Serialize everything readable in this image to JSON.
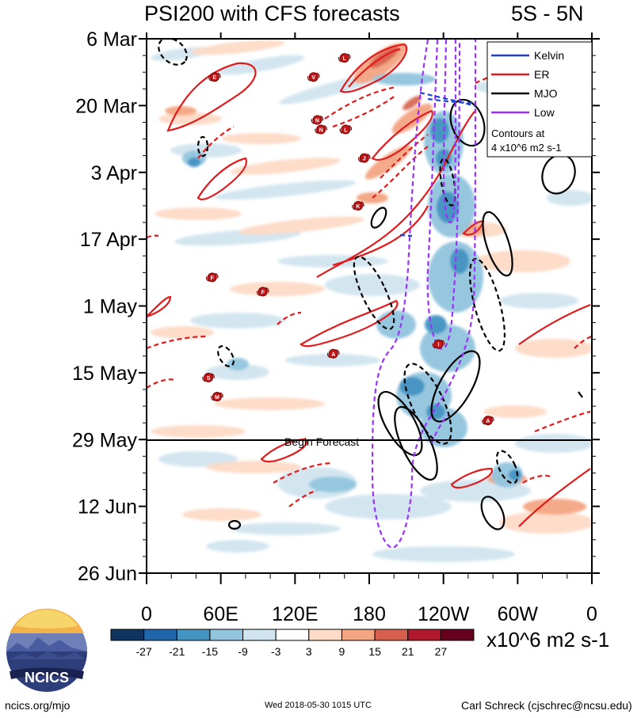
{
  "header": {
    "title": "PSI200 with CFS forecasts",
    "region": "5S - 5N"
  },
  "footer": {
    "website": "ncics.org/mjo",
    "timestamp": "Wed 2018-05-30 1015 UTC",
    "author": "Carl Schreck (cjschrec@ncsu.edu)"
  },
  "logo": {
    "text": "NCICS"
  },
  "chart_data": {
    "type": "heatmap",
    "title": "PSI200 with CFS forecasts",
    "subtitle": "5S - 5N",
    "x_ticks": [
      "0",
      "60E",
      "120E",
      "180",
      "120W",
      "60W",
      "0"
    ],
    "y_ticks": [
      "6 Mar",
      "20 Mar",
      "3 Apr",
      "17 Apr",
      "1 May",
      "15 May",
      "29 May",
      "12 Jun",
      "26 Jun"
    ],
    "x_range": [
      "0",
      "0"
    ],
    "y_range": [
      "6 Mar 2018",
      "26 Jun 2018"
    ],
    "forecast_start": {
      "date": "29 May",
      "label": "Begin Forecast"
    },
    "colorbar": {
      "levels": [
        -27,
        -21,
        -15,
        -9,
        -3,
        3,
        9,
        15,
        21,
        27
      ],
      "labels": [
        "-27",
        "-21",
        "-15",
        "-9",
        "-3",
        "3",
        "9",
        "15",
        "21",
        "27"
      ],
      "colors": [
        "#0d3560",
        "#2166ac",
        "#4393c3",
        "#92c5de",
        "#d1e5f0",
        "#ffffff",
        "#fddbc7",
        "#f4a582",
        "#d6604d",
        "#b2182b",
        "#67001f"
      ],
      "units": "x10^6 m2 s-1"
    },
    "legend": {
      "placement": "top-right",
      "entries": [
        {
          "name": "Kelvin",
          "color": "#1f3fd6"
        },
        {
          "name": "ER",
          "color": "#e31a1c"
        },
        {
          "name": "MJO",
          "color": "#000000"
        },
        {
          "name": "Low",
          "color": "#9b30ff"
        }
      ],
      "note_line1": "Contours at",
      "note_line2": "4 x10^6 m2 s-1"
    },
    "storm_markers": [
      {
        "letter": "E",
        "lon": 55,
        "date": "14 Mar"
      },
      {
        "letter": "V",
        "lon": 135,
        "date": "14 Mar"
      },
      {
        "letter": "L",
        "lon": 160,
        "date": "10 Mar"
      },
      {
        "letter": "N",
        "lon": 138,
        "date": "23 Mar"
      },
      {
        "letter": "N",
        "lon": 141,
        "date": "25 Mar"
      },
      {
        "letter": "L",
        "lon": 161,
        "date": "25 Mar"
      },
      {
        "letter": "J",
        "lon": 176,
        "date": "31 Mar"
      },
      {
        "letter": "K",
        "lon": 171,
        "date": "10 Apr"
      },
      {
        "letter": "F",
        "lon": 53,
        "date": "25 Apr"
      },
      {
        "letter": "F",
        "lon": 94,
        "date": "28 Apr"
      },
      {
        "letter": "A",
        "lon": 151,
        "date": "11 May"
      },
      {
        "letter": "S",
        "lon": 50,
        "date": "16 May"
      },
      {
        "letter": "M",
        "lon": 57,
        "date": "20 May"
      },
      {
        "letter": "I",
        "lon": 236,
        "date": "9 May"
      },
      {
        "letter": "A",
        "lon": 276,
        "date": "25 May"
      }
    ]
  }
}
